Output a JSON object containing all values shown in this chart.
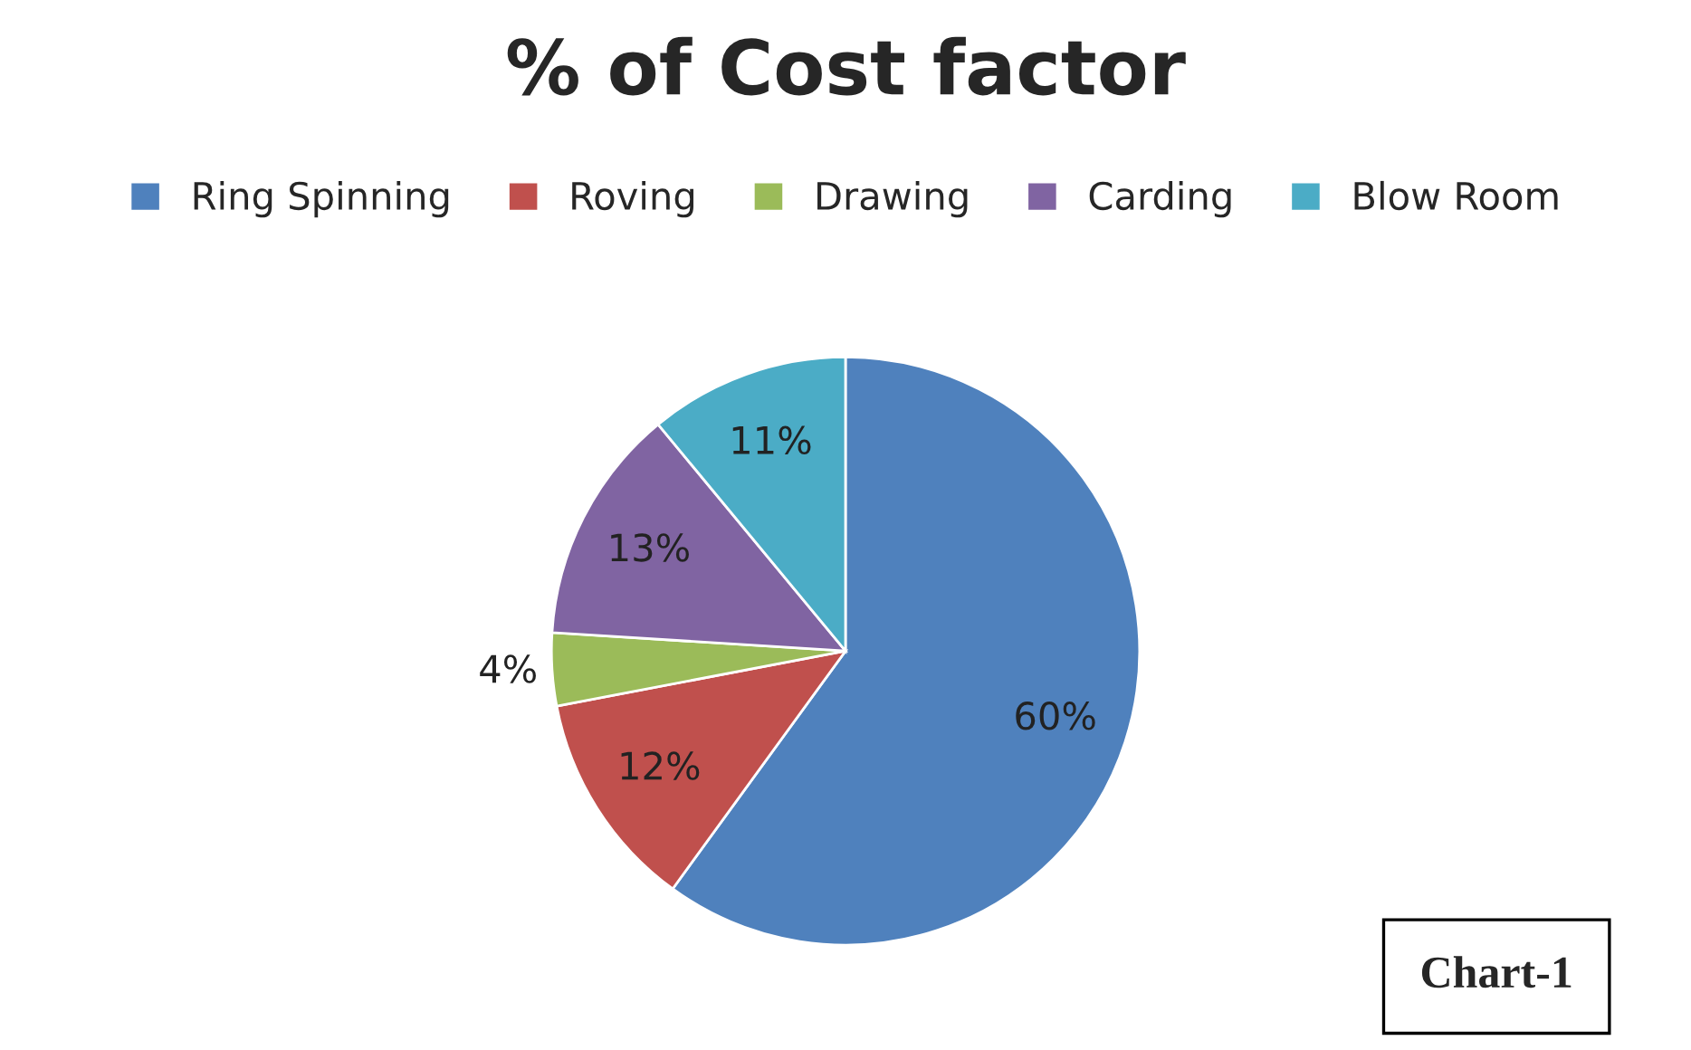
{
  "chart_data": {
    "type": "pie",
    "title": "% of Cost factor",
    "categories": [
      "Ring Spinning",
      "Roving",
      "Drawing",
      "Carding",
      "Blow Room"
    ],
    "values": [
      60,
      12,
      4,
      13,
      11
    ],
    "colors": [
      "#4f81bd",
      "#c0504d",
      "#9bbb59",
      "#8064a2",
      "#4bacc6"
    ],
    "value_labels": [
      "60%",
      "12%",
      "4%",
      "13%",
      "11%"
    ],
    "legend": "top",
    "annotations": [
      "Chart-1"
    ]
  }
}
